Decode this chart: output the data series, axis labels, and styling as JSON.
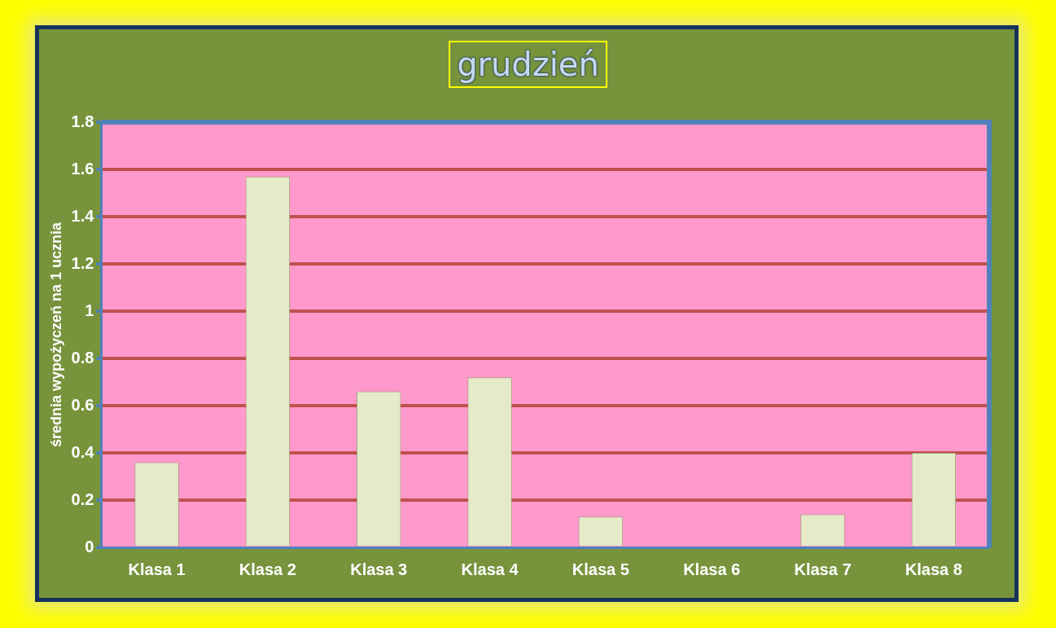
{
  "chart_data": {
    "type": "bar",
    "title": "grudzień",
    "ylabel": "średnia wypożyczeń na 1 ucznia",
    "categories": [
      "Klasa 1",
      "Klasa 2",
      "Klasa 3",
      "Klasa 4",
      "Klasa 5",
      "Klasa 6",
      "Klasa 7",
      "Klasa 8"
    ],
    "values": [
      0.36,
      1.57,
      0.66,
      0.72,
      0.13,
      0,
      0.14,
      0.4
    ],
    "color": "#e4ebc8",
    "ylim": [
      0,
      1.8
    ],
    "yticks": [
      0,
      0.2,
      0.4,
      0.6,
      0.8,
      1,
      1.2,
      1.4,
      1.6,
      1.8
    ],
    "grid": "y",
    "legend": false
  }
}
